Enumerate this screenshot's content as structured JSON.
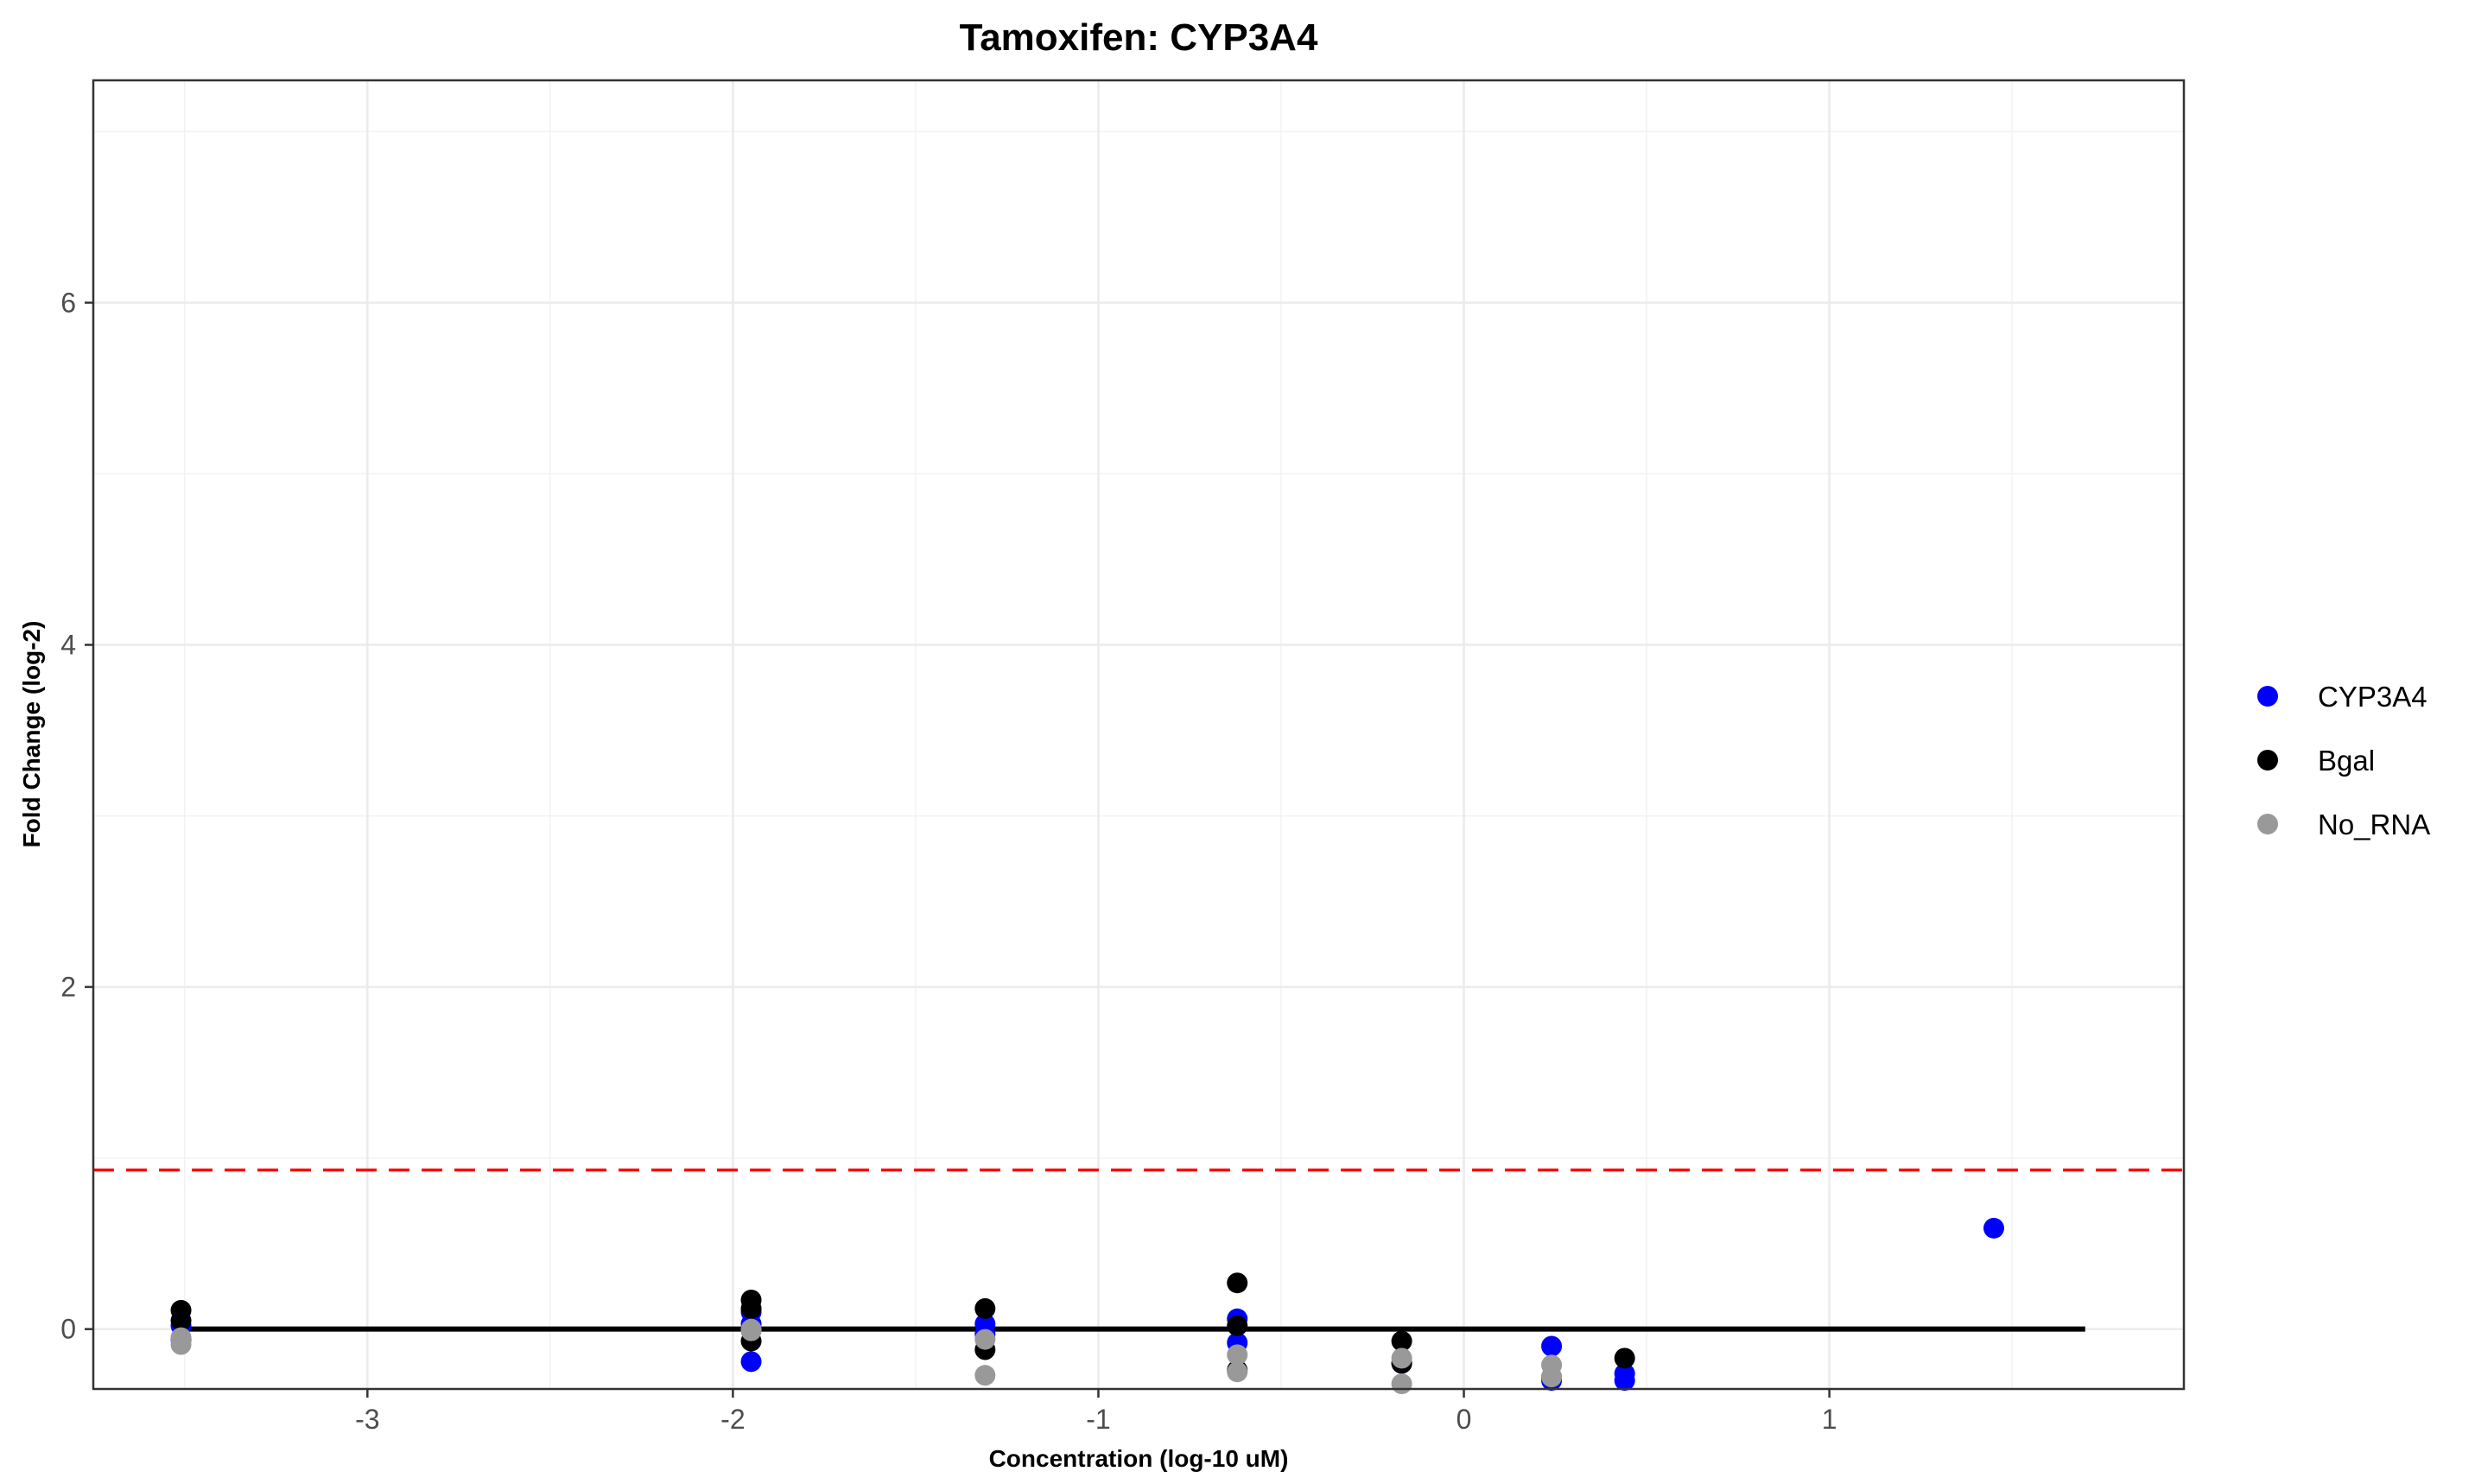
{
  "chart_data": {
    "type": "scatter",
    "title": "Tamoxifen: CYP3A4",
    "xlabel": "Concentration (log-10 uM)",
    "ylabel": "Fold Change (log-2)",
    "xlim": [
      -3.75,
      1.97
    ],
    "ylim": [
      -0.35,
      7.3
    ],
    "x_ticks": [
      -3,
      -2,
      -1,
      0,
      1
    ],
    "x_tick_labels": [
      "-3",
      "-2",
      "-1",
      "0",
      "1"
    ],
    "y_ticks": [
      0,
      2,
      4,
      6
    ],
    "y_tick_labels": [
      "0",
      "2",
      "4",
      "6"
    ],
    "grid": true,
    "legend_position": "right",
    "series": [
      {
        "name": "CYP3A4",
        "color": "#0000ff",
        "points": [
          {
            "x": -3.51,
            "y": 0.02
          },
          {
            "x": -3.51,
            "y": -0.06
          },
          {
            "x": -1.95,
            "y": 0.1
          },
          {
            "x": -1.95,
            "y": -0.19
          },
          {
            "x": -1.95,
            "y": 0.03
          },
          {
            "x": -1.31,
            "y": 0.03
          },
          {
            "x": -1.31,
            "y": -0.03
          },
          {
            "x": -0.62,
            "y": 0.06
          },
          {
            "x": -0.62,
            "y": -0.08
          },
          {
            "x": -0.17,
            "y": -0.2
          },
          {
            "x": 0.24,
            "y": -0.1
          },
          {
            "x": 0.24,
            "y": -0.3
          },
          {
            "x": 0.44,
            "y": -0.26
          },
          {
            "x": 0.44,
            "y": -0.3
          },
          {
            "x": 1.45,
            "y": 0.59
          }
        ]
      },
      {
        "name": "Bgal",
        "color": "#000000",
        "points": [
          {
            "x": -3.51,
            "y": 0.11
          },
          {
            "x": -3.51,
            "y": 0.05
          },
          {
            "x": -1.95,
            "y": 0.17
          },
          {
            "x": -1.95,
            "y": 0.12
          },
          {
            "x": -1.95,
            "y": -0.07
          },
          {
            "x": -1.31,
            "y": 0.12
          },
          {
            "x": -1.31,
            "y": -0.12
          },
          {
            "x": -0.62,
            "y": 0.27
          },
          {
            "x": -0.62,
            "y": 0.02
          },
          {
            "x": -0.62,
            "y": -0.24
          },
          {
            "x": -0.17,
            "y": -0.07
          },
          {
            "x": -0.17,
            "y": -0.2
          },
          {
            "x": 0.24,
            "y": -0.28
          },
          {
            "x": 0.44,
            "y": -0.17
          }
        ]
      },
      {
        "name": "No_RNA",
        "color": "#999999",
        "points": [
          {
            "x": -3.51,
            "y": -0.05
          },
          {
            "x": -3.51,
            "y": -0.09
          },
          {
            "x": -1.95,
            "y": 0.0
          },
          {
            "x": -1.95,
            "y": -0.01
          },
          {
            "x": -1.31,
            "y": -0.06
          },
          {
            "x": -1.31,
            "y": -0.27
          },
          {
            "x": -0.62,
            "y": -0.15
          },
          {
            "x": -0.62,
            "y": -0.25
          },
          {
            "x": -0.17,
            "y": -0.17
          },
          {
            "x": -0.17,
            "y": -0.32
          },
          {
            "x": 0.24,
            "y": -0.21
          },
          {
            "x": 0.24,
            "y": -0.28
          }
        ]
      }
    ],
    "reference_lines": [
      {
        "name": "threshold",
        "y": 0.93,
        "style": "dashed",
        "color": "#ff0000"
      },
      {
        "name": "baseline",
        "y": 0,
        "x_range": [
          -3.5,
          1.7
        ],
        "style": "solid",
        "color": "#000000"
      }
    ]
  }
}
